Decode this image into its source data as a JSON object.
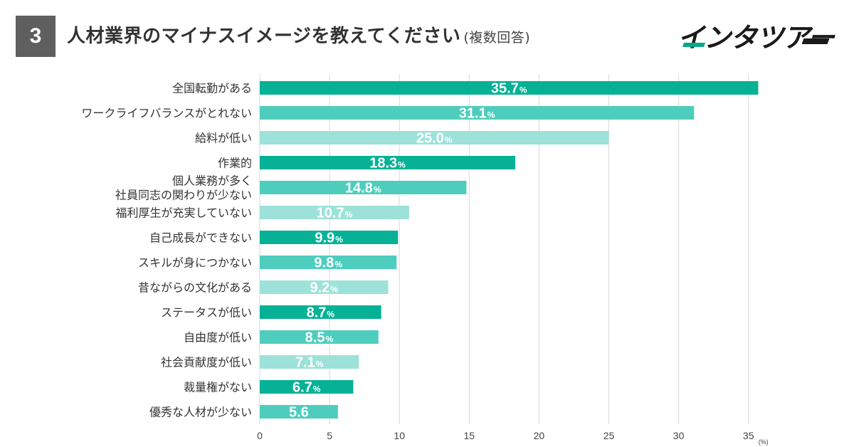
{
  "header": {
    "number": "3",
    "title": "人材業界のマイナスイメージを教えてください",
    "subtitle": "(複数回答)"
  },
  "logo": {
    "text": "インタツアー"
  },
  "colors": {
    "dark": "#06b196",
    "mid": "#4ecdbd",
    "light": "#9de2d8"
  },
  "chart_data": {
    "type": "bar",
    "orientation": "horizontal",
    "title": "人材業界のマイナスイメージを教えてください (複数回答)",
    "categories": [
      "全国転勤がある",
      "ワークライフバランスがとれない",
      "給料が低い",
      "作業的",
      "個人業務が多く\n社員同志の関わりが少ない",
      "福利厚生が充実していない",
      "自己成長ができない",
      "スキルが身につかない",
      "昔ながらの文化がある",
      "ステータスが低い",
      "自由度が低い",
      "社会貢献度が低い",
      "裁量権がない",
      "優秀な人材が少ない"
    ],
    "values": [
      35.7,
      31.1,
      25.0,
      18.3,
      14.8,
      10.7,
      9.9,
      9.8,
      9.2,
      8.7,
      8.5,
      7.1,
      6.7,
      5.6
    ],
    "value_labels": [
      "35.7",
      "31.1",
      "25.0",
      "18.3",
      "14.8",
      "10.7",
      "9.9",
      "9.8",
      "9.2",
      "8.7",
      "8.5",
      "7.1",
      "6.7",
      "5.6"
    ],
    "show_pct_suffix": [
      true,
      true,
      true,
      true,
      true,
      true,
      true,
      true,
      true,
      true,
      true,
      true,
      true,
      false
    ],
    "pct_suffix": "%",
    "xlim": [
      0,
      35
    ],
    "xticks": [
      0,
      5,
      10,
      15,
      20,
      25,
      30,
      35
    ],
    "xunit": "(%)",
    "grid": true
  }
}
